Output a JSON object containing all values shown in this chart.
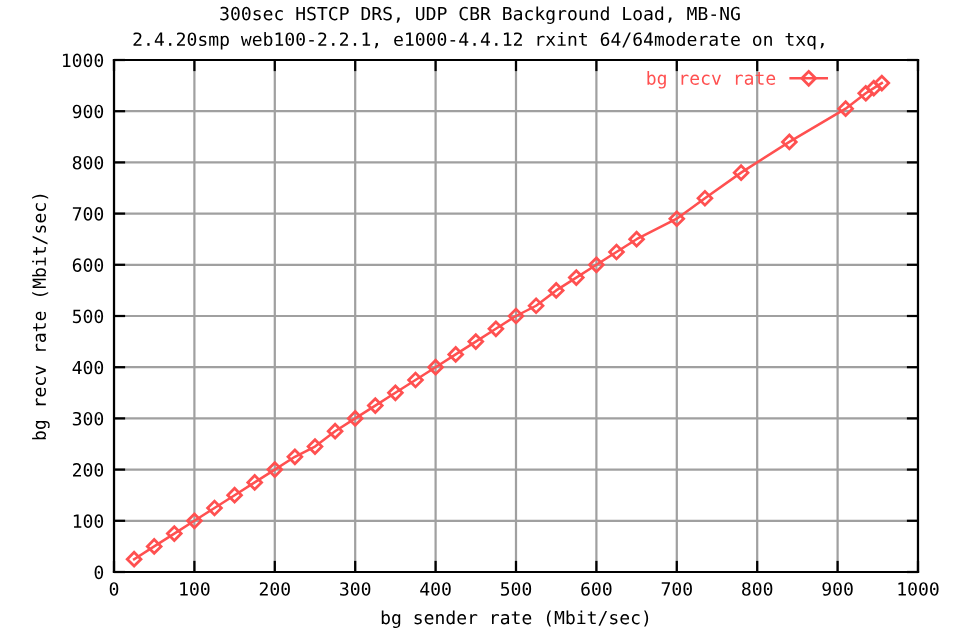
{
  "chart_data": {
    "type": "line",
    "title": "300sec HSTCP DRS, UDP CBR Background Load, MB-NG",
    "subtitle": "2.4.20smp web100-2.2.1, e1000-4.4.12 rxint 64/64moderate on txq,",
    "xlabel": "bg sender rate (Mbit/sec)",
    "ylabel": "bg recv rate (Mbit/sec)",
    "series": [
      {
        "name": "bg recv rate",
        "color": "#ff5050",
        "x": [
          25,
          50,
          75,
          100,
          125,
          150,
          175,
          200,
          225,
          250,
          275,
          300,
          325,
          350,
          375,
          400,
          425,
          450,
          475,
          500,
          525,
          550,
          575,
          600,
          625,
          650,
          700,
          735,
          780,
          840,
          910,
          935,
          945,
          955
        ],
        "values": [
          25,
          50,
          75,
          100,
          125,
          150,
          175,
          200,
          225,
          245,
          275,
          300,
          325,
          350,
          375,
          400,
          425,
          450,
          475,
          500,
          520,
          550,
          575,
          600,
          625,
          650,
          690,
          730,
          780,
          840,
          905,
          935,
          945,
          955
        ]
      }
    ],
    "xlim": [
      0,
      1000
    ],
    "ylim": [
      0,
      1000
    ],
    "xticks": [
      0,
      100,
      200,
      300,
      400,
      500,
      600,
      700,
      800,
      900,
      1000
    ],
    "yticks": [
      0,
      100,
      200,
      300,
      400,
      500,
      600,
      700,
      800,
      900,
      1000
    ],
    "grid": true,
    "legend": "top right",
    "marker": "diamond",
    "line_style": "solid"
  }
}
